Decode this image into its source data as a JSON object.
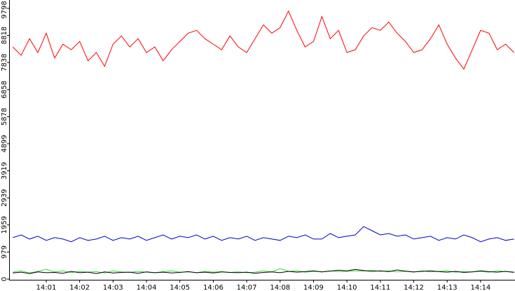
{
  "chart_data": {
    "type": "line",
    "x": [
      0,
      0.25,
      0.5,
      0.75,
      1,
      1.25,
      1.5,
      1.75,
      2,
      2.25,
      2.5,
      2.75,
      3,
      3.25,
      3.5,
      3.75,
      4,
      4.25,
      4.5,
      4.75,
      5,
      5.25,
      5.5,
      5.75,
      6,
      6.25,
      6.5,
      6.75,
      7,
      7.25,
      7.5,
      7.75,
      8,
      8.25,
      8.5,
      8.75,
      9,
      9.25,
      9.5,
      9.75,
      10,
      10.25,
      10.5,
      10.75,
      11,
      11.25,
      11.5,
      11.75,
      12,
      12.25,
      12.5,
      12.75,
      13,
      13.25,
      13.5,
      13.75,
      14,
      14.25,
      14.5,
      14.75,
      15
    ],
    "series": [
      {
        "color": "#ff0000",
        "values": [
          8400,
          8100,
          8700,
          8200,
          8900,
          8000,
          8500,
          8300,
          8600,
          7900,
          8200,
          7700,
          8500,
          8800,
          8400,
          8700,
          8200,
          8400,
          7900,
          8300,
          8600,
          8900,
          9000,
          8700,
          8500,
          8300,
          8800,
          8400,
          8200,
          8700,
          9200,
          8900,
          9100,
          9700,
          9000,
          8400,
          8600,
          9500,
          8700,
          9000,
          8200,
          8300,
          8800,
          9100,
          9000,
          9300,
          8900,
          8600,
          8200,
          8300,
          8700,
          9200,
          8500,
          8000,
          7600,
          8300,
          9000,
          8900,
          8300,
          8500,
          8200
        ]
      },
      {
        "color": "#0000cc",
        "values": [
          1500,
          1600,
          1450,
          1550,
          1400,
          1500,
          1450,
          1350,
          1500,
          1400,
          1450,
          1550,
          1400,
          1500,
          1450,
          1550,
          1400,
          1500,
          1600,
          1450,
          1550,
          1500,
          1600,
          1450,
          1550,
          1400,
          1500,
          1450,
          1550,
          1400,
          1500,
          1450,
          1400,
          1550,
          1500,
          1600,
          1450,
          1450,
          1650,
          1500,
          1550,
          1600,
          1900,
          1750,
          1600,
          1650,
          1550,
          1600,
          1450,
          1500,
          1550,
          1400,
          1500,
          1450,
          1600,
          1500,
          1350,
          1450,
          1500,
          1400,
          1450
        ]
      },
      {
        "color": "#33dd33",
        "values": [
          250,
          300,
          220,
          280,
          350,
          260,
          300,
          230,
          280,
          250,
          270,
          220,
          300,
          260,
          240,
          280,
          250,
          230,
          270,
          300,
          250,
          260,
          230,
          280,
          250,
          270,
          240,
          260,
          230,
          250,
          300,
          260,
          380,
          280,
          300,
          250,
          280,
          260,
          300,
          270,
          280,
          300,
          290,
          320,
          280,
          300,
          260,
          280,
          250,
          300,
          260,
          280,
          300,
          250,
          270,
          260,
          280,
          250,
          300,
          270,
          260
        ]
      },
      {
        "color": "#000000",
        "values": [
          220,
          250,
          200,
          260,
          230,
          240,
          210,
          280,
          230,
          250,
          200,
          260,
          220,
          240,
          250,
          210,
          260,
          230,
          250,
          220,
          240,
          270,
          230,
          250,
          220,
          260,
          240,
          230,
          250,
          210,
          240,
          260,
          230,
          280,
          250,
          270,
          300,
          260,
          290,
          320,
          300,
          350,
          310,
          280,
          300,
          270,
          330,
          290,
          260,
          280,
          300,
          270,
          250,
          280,
          240,
          260,
          300,
          270,
          250,
          280,
          240
        ]
      }
    ],
    "xlim": [
      -0.09,
      15.03
    ],
    "ylim": [
      0,
      10100
    ],
    "xticks": [
      {
        "value": 1,
        "label": "14:01"
      },
      {
        "value": 2,
        "label": "14:02"
      },
      {
        "value": 3,
        "label": "14:03"
      },
      {
        "value": 4,
        "label": "14:04"
      },
      {
        "value": 5,
        "label": "14:05"
      },
      {
        "value": 6,
        "label": "14:06"
      },
      {
        "value": 7,
        "label": "14:07"
      },
      {
        "value": 8,
        "label": "14:08"
      },
      {
        "value": 9,
        "label": "14:09"
      },
      {
        "value": 10,
        "label": "14:10"
      },
      {
        "value": 11,
        "label": "14:11"
      },
      {
        "value": 12,
        "label": "14:12"
      },
      {
        "value": 13,
        "label": "14:13"
      },
      {
        "value": 14,
        "label": "14:14"
      }
    ],
    "yticks": [
      0,
      979,
      1959,
      2939,
      3919,
      4899,
      5878,
      6858,
      7838,
      8818,
      9798
    ]
  }
}
